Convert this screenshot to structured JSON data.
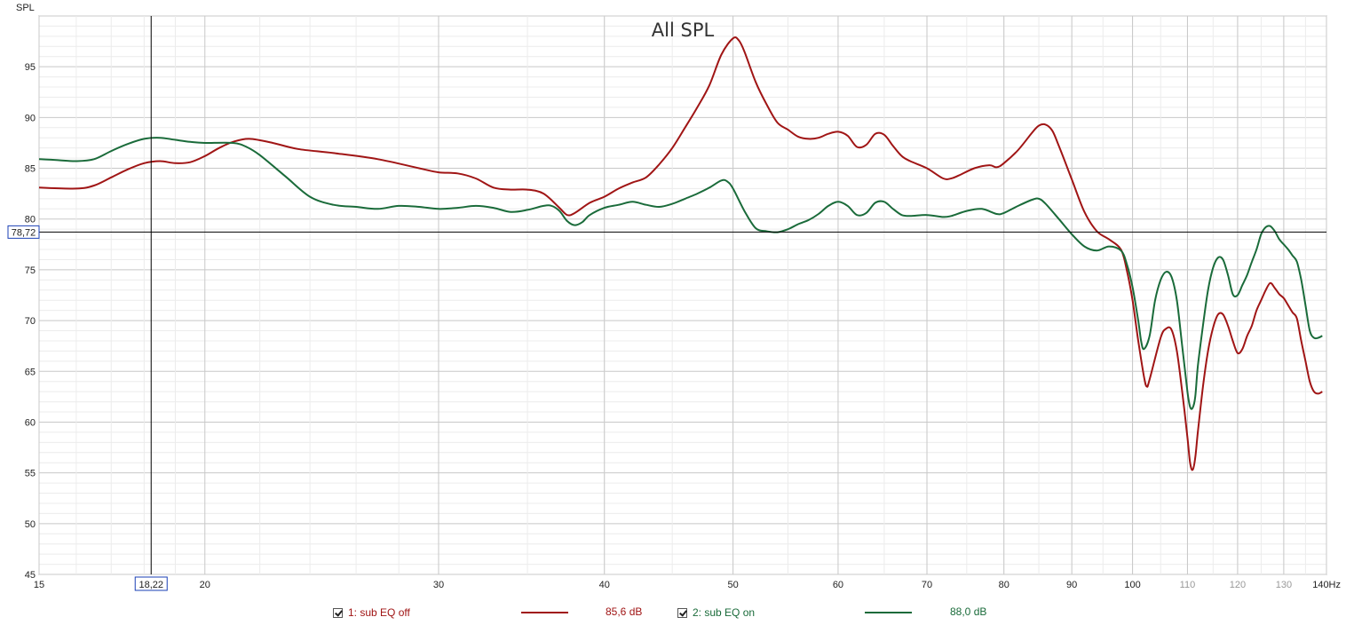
{
  "chart_data": {
    "type": "line",
    "title": "All SPL",
    "ylabel": "SPL",
    "xlabel": "Hz",
    "x_scale": "log",
    "xlim": [
      15,
      140
    ],
    "ylim": [
      45,
      100
    ],
    "y_ticks": [
      45,
      50,
      55,
      60,
      65,
      70,
      75,
      80,
      85,
      90,
      95
    ],
    "x_ticks": [
      {
        "value": 15,
        "label": "15",
        "dim": false
      },
      {
        "value": 20,
        "label": "20",
        "dim": false
      },
      {
        "value": 30,
        "label": "30",
        "dim": false
      },
      {
        "value": 40,
        "label": "40",
        "dim": false
      },
      {
        "value": 50,
        "label": "50",
        "dim": false
      },
      {
        "value": 60,
        "label": "60",
        "dim": false
      },
      {
        "value": 70,
        "label": "70",
        "dim": false
      },
      {
        "value": 80,
        "label": "80",
        "dim": false
      },
      {
        "value": 90,
        "label": "90",
        "dim": false
      },
      {
        "value": 100,
        "label": "100",
        "dim": false
      },
      {
        "value": 110,
        "label": "110",
        "dim": true
      },
      {
        "value": 120,
        "label": "120",
        "dim": true
      },
      {
        "value": 130,
        "label": "130",
        "dim": true
      },
      {
        "value": 140,
        "label": "140Hz",
        "dim": false
      }
    ],
    "grid": true,
    "cursor": {
      "x": 18.22,
      "y": 78.72,
      "x_label": "18,22",
      "y_label": "78,72"
    },
    "series": [
      {
        "name": "1: sub EQ off",
        "color": "#a01515",
        "cursor_value": "85,6 dB",
        "points": [
          [
            15,
            83.1
          ],
          [
            16,
            83.0
          ],
          [
            16.5,
            83.3
          ],
          [
            17,
            84.1
          ],
          [
            17.5,
            84.9
          ],
          [
            18,
            85.5
          ],
          [
            18.5,
            85.7
          ],
          [
            19,
            85.5
          ],
          [
            19.5,
            85.6
          ],
          [
            20,
            86.2
          ],
          [
            20.5,
            87.0
          ],
          [
            21,
            87.6
          ],
          [
            21.6,
            87.9
          ],
          [
            22.5,
            87.5
          ],
          [
            23.5,
            86.9
          ],
          [
            25,
            86.5
          ],
          [
            27,
            85.9
          ],
          [
            29,
            85.0
          ],
          [
            30,
            84.6
          ],
          [
            31,
            84.5
          ],
          [
            32,
            84.0
          ],
          [
            33,
            83.1
          ],
          [
            34,
            82.9
          ],
          [
            35,
            82.9
          ],
          [
            36,
            82.5
          ],
          [
            37,
            81.1
          ],
          [
            37.5,
            80.4
          ],
          [
            38,
            80.6
          ],
          [
            39,
            81.6
          ],
          [
            40,
            82.2
          ],
          [
            41,
            83.0
          ],
          [
            42,
            83.6
          ],
          [
            43,
            84.1
          ],
          [
            44,
            85.4
          ],
          [
            45,
            87.0
          ],
          [
            46,
            89.0
          ],
          [
            47,
            91.0
          ],
          [
            48,
            93.2
          ],
          [
            49,
            96.2
          ],
          [
            50,
            97.8
          ],
          [
            50.5,
            97.6
          ],
          [
            51,
            96.5
          ],
          [
            52,
            93.5
          ],
          [
            53,
            91.3
          ],
          [
            54,
            89.5
          ],
          [
            55,
            88.8
          ],
          [
            56,
            88.1
          ],
          [
            57,
            87.9
          ],
          [
            58,
            88.0
          ],
          [
            59,
            88.4
          ],
          [
            60,
            88.6
          ],
          [
            61,
            88.2
          ],
          [
            62,
            87.1
          ],
          [
            63,
            87.3
          ],
          [
            64,
            88.4
          ],
          [
            65,
            88.3
          ],
          [
            66,
            87.2
          ],
          [
            67,
            86.2
          ],
          [
            68,
            85.7
          ],
          [
            70,
            85.0
          ],
          [
            72,
            84.0
          ],
          [
            73,
            84.0
          ],
          [
            74,
            84.3
          ],
          [
            76,
            85.0
          ],
          [
            78,
            85.3
          ],
          [
            79,
            85.1
          ],
          [
            80,
            85.5
          ],
          [
            82,
            86.8
          ],
          [
            84,
            88.5
          ],
          [
            85,
            89.2
          ],
          [
            86,
            89.3
          ],
          [
            87,
            88.7
          ],
          [
            88,
            87.2
          ],
          [
            90,
            83.9
          ],
          [
            92,
            80.7
          ],
          [
            94,
            78.8
          ],
          [
            96,
            78.0
          ],
          [
            98,
            77.0
          ],
          [
            99,
            75.0
          ],
          [
            100,
            72.0
          ],
          [
            101,
            68.0
          ],
          [
            102,
            64.5
          ],
          [
            102.5,
            63.5
          ],
          [
            103,
            64.2
          ],
          [
            105,
            68.3
          ],
          [
            106,
            69.2
          ],
          [
            107,
            69.1
          ],
          [
            108,
            67.0
          ],
          [
            109,
            63.0
          ],
          [
            110,
            58.5
          ],
          [
            110.5,
            56.0
          ],
          [
            111,
            55.3
          ],
          [
            111.5,
            56.5
          ],
          [
            112,
            59.0
          ],
          [
            113,
            63.5
          ],
          [
            114,
            67.0
          ],
          [
            115,
            69.3
          ],
          [
            116,
            70.6
          ],
          [
            117,
            70.6
          ],
          [
            118,
            69.5
          ],
          [
            119,
            68.0
          ],
          [
            120,
            66.8
          ],
          [
            121,
            67.2
          ],
          [
            122,
            68.5
          ],
          [
            123,
            69.5
          ],
          [
            124,
            71.0
          ],
          [
            125,
            72.0
          ],
          [
            126,
            73.0
          ],
          [
            127,
            73.7
          ],
          [
            128,
            73.2
          ],
          [
            129,
            72.6
          ],
          [
            130,
            72.2
          ],
          [
            131,
            71.5
          ],
          [
            132,
            70.8
          ],
          [
            133,
            70.2
          ],
          [
            134,
            68.0
          ],
          [
            135,
            66.0
          ],
          [
            136,
            64.0
          ],
          [
            137,
            63.0
          ],
          [
            138,
            62.8
          ],
          [
            139,
            63.0
          ]
        ]
      },
      {
        "name": "2: sub EQ on",
        "color": "#1a6b3a",
        "cursor_value": "88,0 dB",
        "points": [
          [
            15,
            85.9
          ],
          [
            15.5,
            85.8
          ],
          [
            16,
            85.7
          ],
          [
            16.5,
            85.9
          ],
          [
            17,
            86.7
          ],
          [
            17.5,
            87.4
          ],
          [
            18,
            87.9
          ],
          [
            18.5,
            88.0
          ],
          [
            19,
            87.8
          ],
          [
            19.5,
            87.6
          ],
          [
            20,
            87.5
          ],
          [
            21,
            87.5
          ],
          [
            21.5,
            87.1
          ],
          [
            22,
            86.3
          ],
          [
            23,
            84.2
          ],
          [
            24,
            82.2
          ],
          [
            25,
            81.4
          ],
          [
            26,
            81.2
          ],
          [
            27,
            81.0
          ],
          [
            28,
            81.3
          ],
          [
            29,
            81.2
          ],
          [
            30,
            81.0
          ],
          [
            31,
            81.1
          ],
          [
            32,
            81.3
          ],
          [
            33,
            81.1
          ],
          [
            34,
            80.7
          ],
          [
            35,
            80.9
          ],
          [
            36,
            81.3
          ],
          [
            36.5,
            81.3
          ],
          [
            37,
            80.8
          ],
          [
            37.5,
            79.8
          ],
          [
            38,
            79.4
          ],
          [
            38.5,
            79.7
          ],
          [
            39,
            80.4
          ],
          [
            40,
            81.1
          ],
          [
            41,
            81.4
          ],
          [
            42,
            81.7
          ],
          [
            43,
            81.4
          ],
          [
            44,
            81.2
          ],
          [
            45,
            81.5
          ],
          [
            46,
            82.0
          ],
          [
            47,
            82.5
          ],
          [
            48,
            83.1
          ],
          [
            49,
            83.8
          ],
          [
            49.5,
            83.7
          ],
          [
            50,
            83.0
          ],
          [
            51,
            80.8
          ],
          [
            52,
            79.1
          ],
          [
            53,
            78.8
          ],
          [
            54,
            78.7
          ],
          [
            55,
            79.0
          ],
          [
            56,
            79.5
          ],
          [
            57,
            79.9
          ],
          [
            58,
            80.5
          ],
          [
            59,
            81.3
          ],
          [
            60,
            81.7
          ],
          [
            61,
            81.3
          ],
          [
            62,
            80.4
          ],
          [
            63,
            80.6
          ],
          [
            64,
            81.6
          ],
          [
            65,
            81.7
          ],
          [
            66,
            81.0
          ],
          [
            67,
            80.4
          ],
          [
            68,
            80.3
          ],
          [
            70,
            80.4
          ],
          [
            72,
            80.2
          ],
          [
            73,
            80.3
          ],
          [
            75,
            80.8
          ],
          [
            77,
            81.0
          ],
          [
            79,
            80.5
          ],
          [
            80,
            80.6
          ],
          [
            82,
            81.3
          ],
          [
            84,
            81.9
          ],
          [
            85,
            82.0
          ],
          [
            86,
            81.5
          ],
          [
            88,
            80.0
          ],
          [
            90,
            78.5
          ],
          [
            92,
            77.3
          ],
          [
            94,
            76.9
          ],
          [
            96,
            77.3
          ],
          [
            98,
            76.9
          ],
          [
            99,
            75.6
          ],
          [
            100,
            73.3
          ],
          [
            101,
            70.0
          ],
          [
            101.5,
            68.0
          ],
          [
            102,
            67.2
          ],
          [
            103,
            68.5
          ],
          [
            104,
            72.0
          ],
          [
            105,
            74.0
          ],
          [
            106,
            74.8
          ],
          [
            107,
            74.3
          ],
          [
            108,
            72.0
          ],
          [
            109,
            67.5
          ],
          [
            110,
            63.0
          ],
          [
            110.5,
            61.5
          ],
          [
            111,
            61.4
          ],
          [
            111.5,
            62.5
          ],
          [
            112,
            65.5
          ],
          [
            113,
            69.5
          ],
          [
            114,
            73.0
          ],
          [
            115,
            75.2
          ],
          [
            116,
            76.2
          ],
          [
            117,
            76.0
          ],
          [
            118,
            74.5
          ],
          [
            119,
            72.6
          ],
          [
            120,
            72.5
          ],
          [
            121,
            73.5
          ],
          [
            122,
            74.5
          ],
          [
            123,
            75.8
          ],
          [
            124,
            77.0
          ],
          [
            125,
            78.5
          ],
          [
            126,
            79.2
          ],
          [
            127,
            79.3
          ],
          [
            128,
            78.8
          ],
          [
            129,
            78.0
          ],
          [
            130,
            77.5
          ],
          [
            131,
            77.0
          ],
          [
            132,
            76.4
          ],
          [
            133,
            75.8
          ],
          [
            134,
            74.0
          ],
          [
            135,
            71.5
          ],
          [
            136,
            69.0
          ],
          [
            137,
            68.3
          ],
          [
            138,
            68.3
          ],
          [
            139,
            68.5
          ]
        ]
      }
    ]
  }
}
